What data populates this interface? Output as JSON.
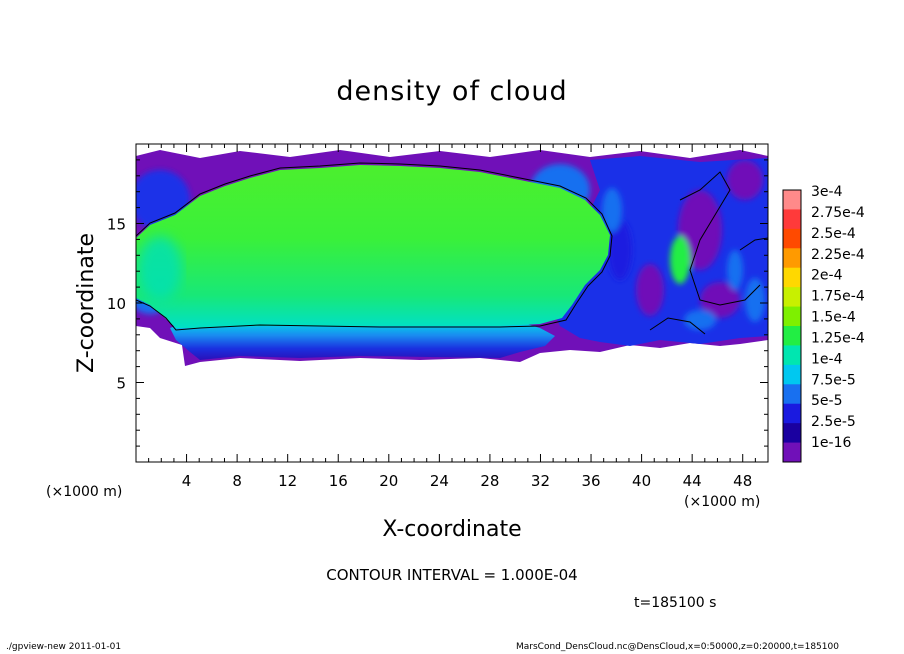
{
  "chart_data": {
    "type": "heatmap",
    "title": "density of cloud",
    "xlabel": "X-coordinate",
    "ylabel": "Z-coordinate",
    "x_unit_left": "(×1000 m)",
    "x_unit_right": "(×1000 m)",
    "xlim": [
      0,
      50
    ],
    "ylim": [
      0,
      20
    ],
    "x_ticks": [
      4,
      8,
      12,
      16,
      20,
      24,
      28,
      32,
      36,
      40,
      44,
      48
    ],
    "y_ticks": [
      5,
      10,
      15
    ],
    "colorbar": {
      "labels": [
        "3e-4",
        "2.75e-4",
        "2.5e-4",
        "2.25e-4",
        "2e-4",
        "1.75e-4",
        "1.5e-4",
        "1.25e-4",
        "1e-4",
        "7.5e-5",
        "5e-5",
        "2.5e-5",
        "1e-16"
      ],
      "colors": [
        "#ff8a8a",
        "#ff3a3a",
        "#ff4a00",
        "#ff9a00",
        "#ffd800",
        "#c8f000",
        "#7ef000",
        "#22ee44",
        "#00e6b0",
        "#00c8f0",
        "#1870f0",
        "#1a1ae0",
        "#1a00a0",
        "#7010b8"
      ]
    },
    "regions": [
      {
        "level": "1.25e-4",
        "x": [
          1,
          35
        ],
        "z": [
          9,
          19
        ]
      },
      {
        "level": "7.5e-5",
        "x": [
          3,
          30
        ],
        "z": [
          7.5,
          9
        ]
      },
      {
        "level": "5e-5",
        "x": [
          36,
          50
        ],
        "z": [
          8,
          19
        ]
      },
      {
        "level": "1e-16",
        "x": [
          0,
          50
        ],
        "z": [
          6.5,
          19.5
        ]
      }
    ],
    "contour_interval": "CONTOUR INTERVAL = 1.000E-04",
    "time": "t=185100 s",
    "footer_left": "./gpview-new   2011-01-01",
    "footer_right": "MarsCond_DensCloud.nc@DensCloud,x=0:50000,z=0:20000,t=185100"
  }
}
